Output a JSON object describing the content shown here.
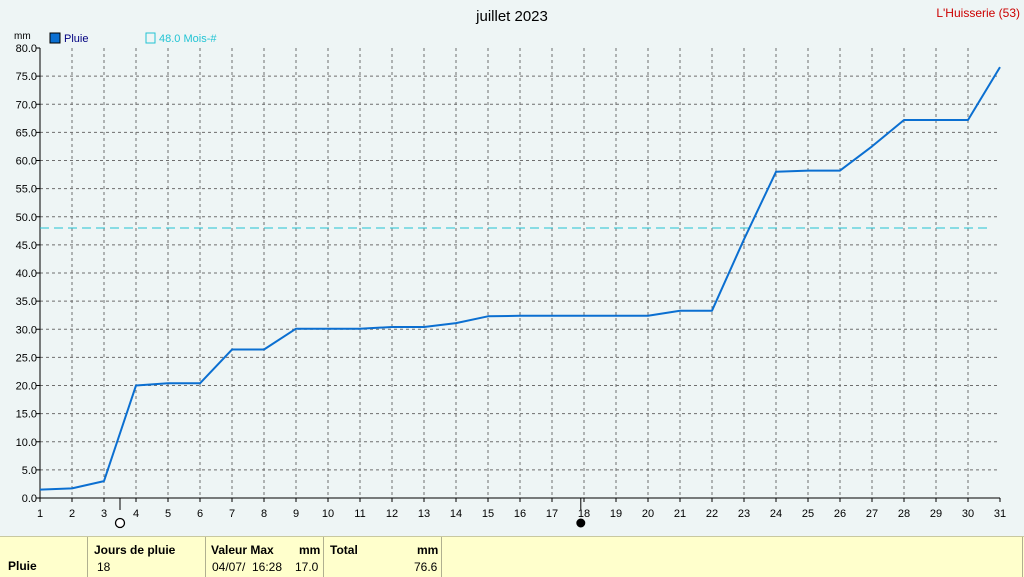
{
  "header": {
    "title": "juillet 2023",
    "station": "L'Huisserie (53)",
    "unit": "mm"
  },
  "legend": {
    "series_label": "Pluie",
    "series_color": "#0b6fd1",
    "ref_label": "48.0 Mois-#",
    "ref_color": "#22c4d4"
  },
  "markers": {
    "new_moon_day": 3.5,
    "full_moon_day": 17.9
  },
  "chart_data": {
    "type": "line",
    "title": "juillet 2023",
    "ylabel": "mm",
    "x": [
      1,
      2,
      3,
      4,
      5,
      6,
      7,
      8,
      9,
      10,
      11,
      12,
      13,
      14,
      15,
      16,
      17,
      18,
      19,
      20,
      21,
      22,
      23,
      24,
      25,
      26,
      27,
      28,
      29,
      30,
      31
    ],
    "series": [
      {
        "name": "Pluie",
        "color": "#0b6fd1",
        "values": [
          1.5,
          1.7,
          3.0,
          20.0,
          20.4,
          20.4,
          26.4,
          26.4,
          30.1,
          30.1,
          30.1,
          30.4,
          30.4,
          31.1,
          32.3,
          32.4,
          32.4,
          32.4,
          32.4,
          32.4,
          33.3,
          33.3,
          46.0,
          58.0,
          58.2,
          58.2,
          62.5,
          67.2,
          67.2,
          67.2,
          76.6
        ]
      }
    ],
    "reference_line": {
      "name": "48.0 Mois-#",
      "value": 48.0
    },
    "xlim": [
      1,
      31
    ],
    "ylim": [
      0,
      80
    ],
    "y_ticks": [
      "0.0",
      "5.0",
      "10.0",
      "15.0",
      "20.0",
      "25.0",
      "30.0",
      "35.0",
      "40.0",
      "45.0",
      "50.0",
      "55.0",
      "60.0",
      "65.0",
      "70.0",
      "75.0",
      "80.0"
    ],
    "x_ticks": [
      "1",
      "2",
      "3",
      "4",
      "5",
      "6",
      "7",
      "8",
      "9",
      "10",
      "11",
      "12",
      "13",
      "14",
      "15",
      "16",
      "17",
      "18",
      "19",
      "20",
      "21",
      "22",
      "23",
      "24",
      "25",
      "26",
      "27",
      "28",
      "29",
      "30",
      "31"
    ],
    "grid": true,
    "legend_position": "top-left"
  },
  "footer": {
    "row_label": "Pluie",
    "col1_header": "Jours de pluie",
    "col1_value": "18",
    "col2_header": "Valeur Max",
    "col2_unit": "mm",
    "col2_date": "04/07/",
    "col2_time": "16:28",
    "col2_value": "17.0",
    "col3_header": "Total",
    "col3_unit": "mm",
    "col3_value": "76.6"
  }
}
